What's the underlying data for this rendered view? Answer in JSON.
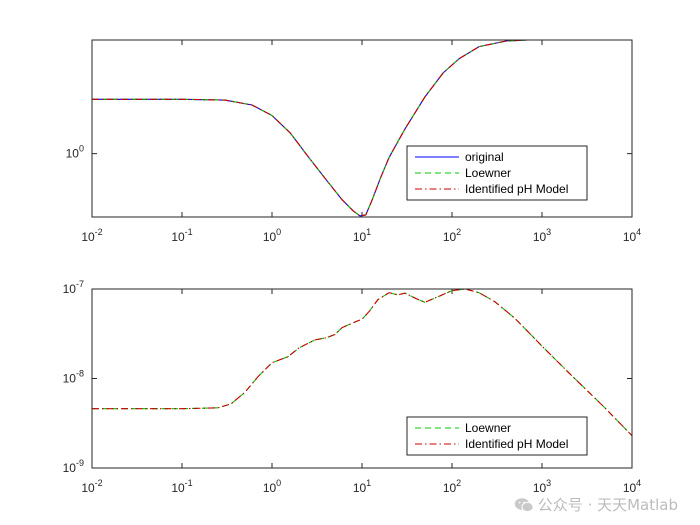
{
  "chart_data": [
    {
      "type": "line",
      "title": "",
      "xlabel": "",
      "ylabel": "",
      "x_scale": "log",
      "y_scale": "log",
      "xlim": [
        0.01,
        10000
      ],
      "ylim": [
        0.6,
        2.5
      ],
      "x_ticks": [
        {
          "value": 0.01,
          "base": "10",
          "exp": "-2"
        },
        {
          "value": 0.1,
          "base": "10",
          "exp": "-1"
        },
        {
          "value": 1,
          "base": "10",
          "exp": "0"
        },
        {
          "value": 10,
          "base": "10",
          "exp": "1"
        },
        {
          "value": 100,
          "base": "10",
          "exp": "2"
        },
        {
          "value": 1000,
          "base": "10",
          "exp": "3"
        },
        {
          "value": 10000,
          "base": "10",
          "exp": "4"
        }
      ],
      "y_ticks": [
        {
          "value": 1,
          "base": "10",
          "exp": "0"
        }
      ],
      "legend_position": "bottom-right",
      "x": [
        0.01,
        0.1,
        0.3,
        0.6,
        1,
        1.6,
        2.5,
        4,
        6,
        8,
        9.5,
        11,
        13,
        16,
        20,
        30,
        50,
        80,
        120,
        200,
        400,
        700,
        1000,
        10000
      ],
      "series": [
        {
          "name": "original",
          "color": "#0000ff",
          "dash": "solid",
          "values": [
            1.55,
            1.55,
            1.54,
            1.48,
            1.36,
            1.18,
            0.98,
            0.81,
            0.69,
            0.63,
            0.605,
            0.61,
            0.69,
            0.82,
            0.97,
            1.22,
            1.58,
            1.92,
            2.15,
            2.37,
            2.48,
            2.5,
            2.5,
            2.5
          ]
        },
        {
          "name": "Loewner",
          "color": "#00c800",
          "dash": "dashed",
          "values": [
            1.55,
            1.55,
            1.54,
            1.48,
            1.36,
            1.18,
            0.98,
            0.81,
            0.69,
            0.63,
            0.605,
            0.61,
            0.69,
            0.82,
            0.97,
            1.22,
            1.58,
            1.92,
            2.15,
            2.37,
            2.48,
            2.5,
            2.5,
            2.5
          ]
        },
        {
          "name": "Identified pH Model",
          "color": "#c80000",
          "dash": "dashdot",
          "values": [
            1.55,
            1.55,
            1.54,
            1.48,
            1.36,
            1.18,
            0.98,
            0.81,
            0.69,
            0.63,
            0.605,
            0.61,
            0.69,
            0.82,
            0.97,
            1.22,
            1.58,
            1.92,
            2.15,
            2.37,
            2.48,
            2.5,
            2.5,
            2.5
          ]
        }
      ]
    },
    {
      "type": "line",
      "title": "",
      "xlabel": "",
      "ylabel": "",
      "x_scale": "log",
      "y_scale": "log",
      "xlim": [
        0.01,
        10000
      ],
      "ylim": [
        1e-09,
        1e-07
      ],
      "x_ticks": [
        {
          "value": 0.01,
          "base": "10",
          "exp": "-2"
        },
        {
          "value": 0.1,
          "base": "10",
          "exp": "-1"
        },
        {
          "value": 1,
          "base": "10",
          "exp": "0"
        },
        {
          "value": 10,
          "base": "10",
          "exp": "1"
        },
        {
          "value": 100,
          "base": "10",
          "exp": "2"
        },
        {
          "value": 1000,
          "base": "10",
          "exp": "3"
        },
        {
          "value": 10000,
          "base": "10",
          "exp": "4"
        }
      ],
      "y_ticks": [
        {
          "value": 1e-09,
          "base": "10",
          "exp": "-9"
        },
        {
          "value": 1e-08,
          "base": "10",
          "exp": "-8"
        },
        {
          "value": 1e-07,
          "base": "10",
          "exp": "-7"
        }
      ],
      "legend_position": "bottom-right",
      "x": [
        0.01,
        0.1,
        0.25,
        0.35,
        0.5,
        0.7,
        1,
        1.5,
        2,
        3,
        4,
        5,
        6,
        8,
        10,
        12,
        15,
        20,
        25,
        30,
        40,
        50,
        70,
        100,
        140,
        200,
        300,
        500,
        1000,
        2000,
        5000,
        10000
      ],
      "series": [
        {
          "name": "Loewner",
          "color": "#00c800",
          "dash": "dashed",
          "values": [
            4.6e-09,
            4.6e-09,
            4.7e-09,
            5.2e-09,
            7e-09,
            1.05e-08,
            1.5e-08,
            1.75e-08,
            2.2e-08,
            2.7e-08,
            2.85e-08,
            3.1e-08,
            3.7e-08,
            4.2e-08,
            4.6e-08,
            5.6e-08,
            7.6e-08,
            9.1e-08,
            8.6e-08,
            9e-08,
            7.8e-08,
            7.1e-08,
            8.2e-08,
            9.6e-08,
            1e-07,
            9.1e-08,
            7.2e-08,
            4.7e-08,
            2.3e-08,
            1.15e-08,
            4.7e-09,
            2.3e-09
          ]
        },
        {
          "name": "Identified pH Model",
          "color": "#c80000",
          "dash": "dashdot",
          "values": [
            4.6e-09,
            4.6e-09,
            4.7e-09,
            5.2e-09,
            7e-09,
            1.05e-08,
            1.5e-08,
            1.75e-08,
            2.2e-08,
            2.7e-08,
            2.85e-08,
            3.1e-08,
            3.7e-08,
            4.2e-08,
            4.6e-08,
            5.6e-08,
            7.6e-08,
            9.1e-08,
            8.6e-08,
            9e-08,
            7.8e-08,
            7.1e-08,
            8.2e-08,
            9.6e-08,
            1e-07,
            9.1e-08,
            7.2e-08,
            4.7e-08,
            2.3e-08,
            1.15e-08,
            4.7e-09,
            2.3e-09
          ]
        }
      ]
    }
  ],
  "watermark": {
    "icon": "wechat-icon",
    "text": "公众号 · 天天Matlab"
  }
}
